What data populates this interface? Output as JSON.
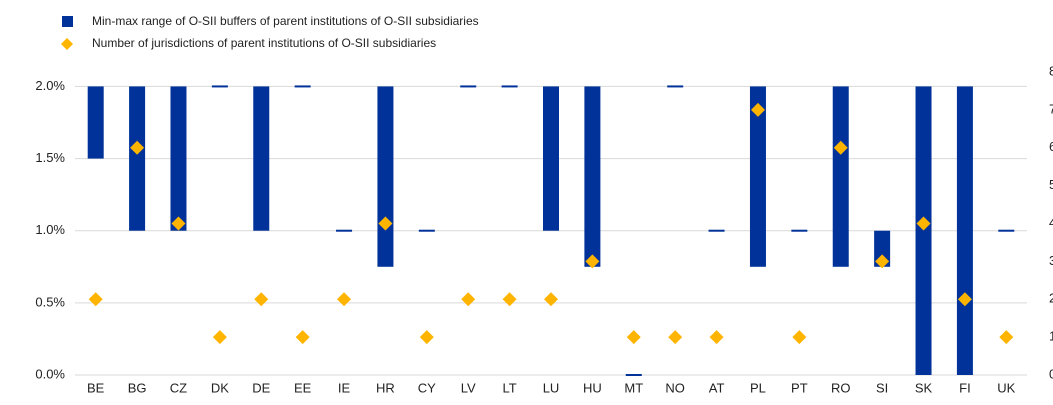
{
  "chart_data": {
    "type": "range-bar",
    "categories": [
      "BE",
      "BG",
      "CZ",
      "DK",
      "DE",
      "EE",
      "IE",
      "HR",
      "CY",
      "LV",
      "LT",
      "LU",
      "HU",
      "MT",
      "NO",
      "AT",
      "PL",
      "PT",
      "RO",
      "SI",
      "SK",
      "FI",
      "UK"
    ],
    "series": [
      {
        "name": "Min-max range of O-SII buffers of parent institutions of O-SII subsidiaries",
        "color": "#003299",
        "low": [
          1.5,
          1.0,
          1.0,
          2.0,
          1.0,
          2.0,
          1.0,
          0.75,
          1.0,
          2.0,
          2.0,
          1.0,
          0.75,
          0,
          2.0,
          1.0,
          0.75,
          1.0,
          0.75,
          0.75,
          0,
          0,
          1.0
        ],
        "high": [
          2.0,
          2.0,
          2.0,
          2.0,
          2.0,
          2.0,
          1.0,
          2.0,
          1.0,
          2.0,
          2.0,
          2.0,
          2.0,
          0,
          2.0,
          1.0,
          2.0,
          1.0,
          2.0,
          1.0,
          2.0,
          2.0,
          1.0
        ]
      },
      {
        "name": "Number of jurisdictions of parent institutions of O-SII subsidiaries",
        "color": "#ffb400",
        "axis": "y2",
        "values": [
          2,
          6,
          4,
          1,
          2,
          1,
          2,
          4,
          1,
          2,
          2,
          2,
          3,
          1,
          1,
          1,
          7,
          1,
          6,
          3,
          4,
          2,
          1
        ]
      }
    ],
    "ylim": [
      0,
      2.1
    ],
    "yticks": [
      {
        "value": 0,
        "label": "0.0%"
      },
      {
        "value": 0.5,
        "label": "0.5%"
      },
      {
        "value": 1.0,
        "label": "1.0%"
      },
      {
        "value": 1.5,
        "label": "1.5%"
      },
      {
        "value": 2.0,
        "label": "2.0%"
      }
    ],
    "y2lim": [
      0,
      8
    ],
    "y2ticks": [
      0,
      1,
      2,
      3,
      4,
      5,
      6,
      7,
      8
    ],
    "grid": true,
    "legend": "top-left"
  }
}
